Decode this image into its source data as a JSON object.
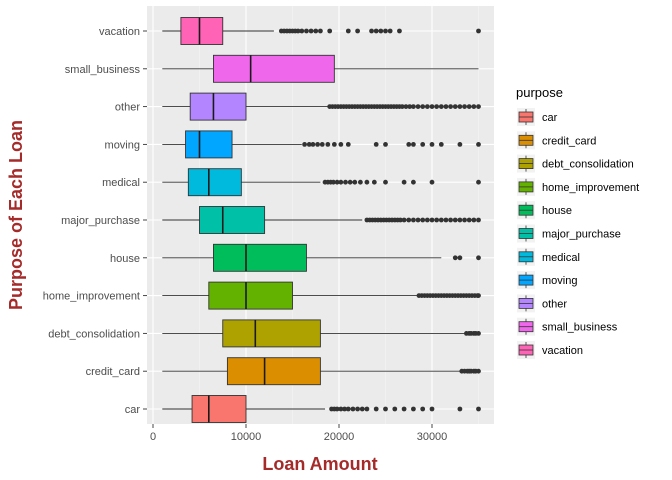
{
  "chart_data": {
    "type": "boxplot",
    "orientation": "horizontal",
    "title": "",
    "xlabel": "Loan Amount",
    "ylabel": "Purpose of Each Loan",
    "xlim": [
      0,
      36000
    ],
    "xticks": [
      0,
      10000,
      20000,
      30000
    ],
    "grid": true,
    "legend": {
      "title": "purpose",
      "position": "right"
    },
    "series": [
      {
        "name": "car",
        "color": "#F8766D",
        "min": 1000,
        "q1": 4200,
        "median": 6000,
        "q3": 10000,
        "max": 18500,
        "outliers": [
          19200,
          19500,
          19800,
          20200,
          20600,
          21000,
          21500,
          22000,
          22500,
          23000,
          24000,
          25000,
          26000,
          27000,
          28000,
          29000,
          30000,
          33000,
          35000
        ]
      },
      {
        "name": "credit_card",
        "color": "#DB8E00",
        "min": 1000,
        "q1": 8000,
        "median": 12000,
        "q3": 18000,
        "max": 33000,
        "outliers": [
          33200,
          33500,
          33800,
          34000,
          34200,
          34500,
          34700,
          35000
        ]
      },
      {
        "name": "debt_consolidation",
        "color": "#AEA200",
        "min": 1000,
        "q1": 7500,
        "median": 11000,
        "q3": 18000,
        "max": 33500,
        "outliers": [
          33700,
          34000,
          34200,
          34500,
          34700,
          35000
        ]
      },
      {
        "name": "home_improvement",
        "color": "#64B200",
        "min": 1000,
        "q1": 6000,
        "median": 10000,
        "q3": 15000,
        "max": 28500,
        "outliers": [
          28600,
          28900,
          29200,
          29500,
          29800,
          30100,
          30400,
          30700,
          31000,
          31300,
          31600,
          31900,
          32200,
          32500,
          32800,
          33100,
          33400,
          33700,
          34000,
          34300,
          34600,
          34900,
          35000
        ]
      },
      {
        "name": "house",
        "color": "#00BD5C",
        "min": 1000,
        "q1": 6500,
        "median": 10000,
        "q3": 16500,
        "max": 31000,
        "outliers": [
          32500,
          33000,
          35000
        ]
      },
      {
        "name": "major_purchase",
        "color": "#00C1A7",
        "min": 1000,
        "q1": 5000,
        "median": 7500,
        "q3": 12000,
        "max": 22500,
        "outliers": [
          23000,
          23300,
          23600,
          23900,
          24200,
          24500,
          24800,
          25100,
          25400,
          25700,
          26000,
          26300,
          26600,
          27000,
          27500,
          28000,
          28500,
          29000,
          29500,
          30000,
          30500,
          31000,
          31500,
          32000,
          32500,
          33000,
          33500,
          34000,
          34500,
          35000
        ]
      },
      {
        "name": "medical",
        "color": "#00BADE",
        "min": 1000,
        "q1": 3800,
        "median": 6000,
        "q3": 9500,
        "max": 18000,
        "outliers": [
          18500,
          18800,
          19100,
          19400,
          19800,
          20200,
          20700,
          21200,
          21700,
          22300,
          23000,
          23800,
          25000,
          27000,
          28000,
          30000,
          35000
        ]
      },
      {
        "name": "moving",
        "color": "#00A6FF",
        "min": 1000,
        "q1": 3500,
        "median": 5000,
        "q3": 8500,
        "max": 16000,
        "outliers": [
          16300,
          16800,
          17200,
          17700,
          18200,
          18800,
          19500,
          20200,
          21000,
          24000,
          25000,
          27500,
          28000,
          29000,
          30000,
          31000,
          33000,
          35000
        ]
      },
      {
        "name": "other",
        "color": "#B385FF",
        "min": 1000,
        "q1": 4000,
        "median": 6500,
        "q3": 10000,
        "max": 19000,
        "outliers": [
          19000,
          19300,
          19600,
          19900,
          20200,
          20500,
          20800,
          21100,
          21400,
          21700,
          22000,
          22300,
          22600,
          22900,
          23200,
          23500,
          23800,
          24100,
          24400,
          24700,
          25000,
          25300,
          25600,
          25900,
          26200,
          26500,
          26800,
          27200,
          27600,
          28000,
          28500,
          29000,
          29500,
          30000,
          30500,
          31000,
          31500,
          32000,
          32500,
          33000,
          33500,
          34000,
          34500,
          35000
        ]
      },
      {
        "name": "small_business",
        "color": "#EF67EB",
        "min": 1000,
        "q1": 6500,
        "median": 10500,
        "q3": 19500,
        "max": 35000,
        "outliers": []
      },
      {
        "name": "vacation",
        "color": "#FF63B6",
        "min": 1000,
        "q1": 3000,
        "median": 5000,
        "q3": 7500,
        "max": 13000,
        "outliers": [
          13800,
          14100,
          14400,
          14700,
          15000,
          15300,
          15600,
          16000,
          16500,
          17000,
          17500,
          18000,
          19000,
          21000,
          22000,
          23500,
          24000,
          24500,
          25000,
          25500,
          26500,
          35000
        ]
      }
    ]
  }
}
